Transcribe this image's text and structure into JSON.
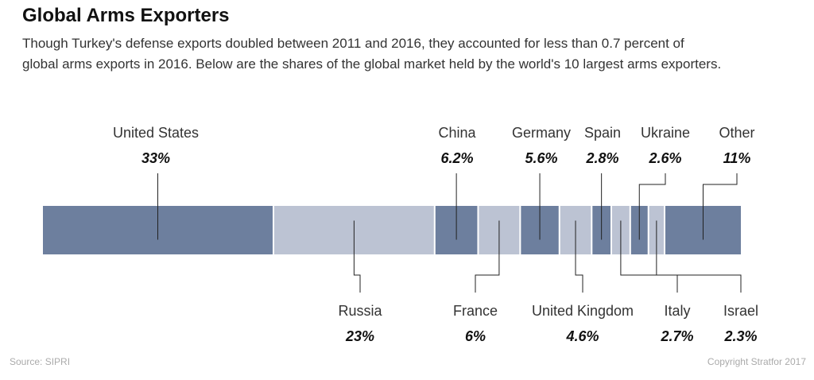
{
  "chart_data": {
    "type": "bar",
    "title": "Global Arms Exporters",
    "subtitle": "Though Turkey's defense exports doubled between 2011 and 2016, they accounted for less than 0.7 percent of global arms exports in 2016. Below are the shares of the global market held by the world's 10 largest arms exporters.",
    "categories": [
      "United States",
      "Russia",
      "China",
      "France",
      "Germany",
      "United Kingdom",
      "Spain",
      "Italy",
      "Ukraine",
      "Israel",
      "Other"
    ],
    "values": [
      33,
      23,
      6.2,
      6,
      5.6,
      4.6,
      2.8,
      2.7,
      2.6,
      2.3,
      11
    ],
    "value_labels": [
      "33%",
      "23%",
      "6.2%",
      "6%",
      "5.6%",
      "4.6%",
      "2.8%",
      "2.7%",
      "2.6%",
      "2.3%",
      "11%"
    ],
    "label_position": [
      "top",
      "bottom",
      "top",
      "bottom",
      "top",
      "bottom",
      "top",
      "bottom",
      "top",
      "bottom",
      "top"
    ],
    "unit": "%",
    "stacked": true,
    "colors": {
      "dark": "#6d7f9e",
      "light": "#bcc3d3"
    }
  },
  "footer": {
    "source": "Source: SIPRI",
    "copyright": "Copyright Stratfor 2017"
  }
}
